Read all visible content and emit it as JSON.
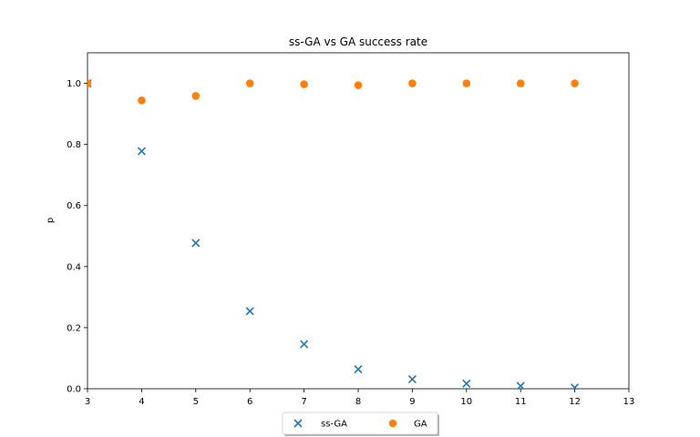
{
  "chart_data": {
    "type": "scatter",
    "title": "ss-GA vs GA success rate",
    "xlabel": "",
    "ylabel": "p",
    "xlim": [
      3,
      13
    ],
    "ylim": [
      0,
      1.1
    ],
    "xticks": [
      "3",
      "4",
      "5",
      "6",
      "7",
      "8",
      "9",
      "10",
      "11",
      "12",
      "13"
    ],
    "yticks": [
      "0.0",
      "0.2",
      "0.4",
      "0.6",
      "0.8",
      "1.0"
    ],
    "grid": false,
    "legend_position": "bottom-center",
    "series": [
      {
        "name": "ss-GA",
        "marker": "x",
        "color": "#1f77b4",
        "x": [
          3,
          4,
          5,
          6,
          7,
          8,
          9,
          10,
          11,
          12
        ],
        "y": [
          1.0,
          0.778,
          0.477,
          0.254,
          0.146,
          0.064,
          0.031,
          0.017,
          0.009,
          0.004
        ]
      },
      {
        "name": "GA",
        "marker": "circle",
        "color": "#ff7f0e",
        "x": [
          3,
          4,
          5,
          6,
          7,
          8,
          9,
          10,
          11,
          12
        ],
        "y": [
          1.0,
          0.944,
          0.959,
          1.0,
          0.997,
          0.994,
          1.0,
          1.0,
          1.0,
          1.0
        ]
      }
    ]
  }
}
